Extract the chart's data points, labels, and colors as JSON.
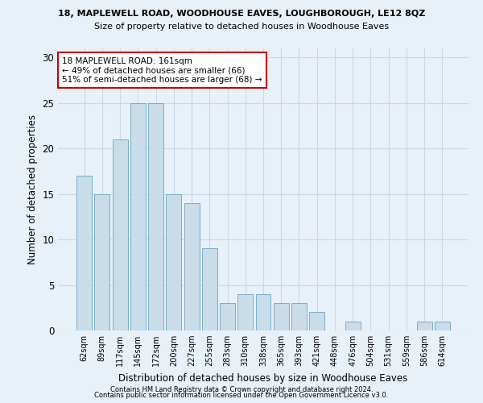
{
  "title1": "18, MAPLEWELL ROAD, WOODHOUSE EAVES, LOUGHBOROUGH, LE12 8QZ",
  "title2": "Size of property relative to detached houses in Woodhouse Eaves",
  "xlabel": "Distribution of detached houses by size in Woodhouse Eaves",
  "ylabel": "Number of detached properties",
  "categories": [
    "62sqm",
    "89sqm",
    "117sqm",
    "145sqm",
    "172sqm",
    "200sqm",
    "227sqm",
    "255sqm",
    "283sqm",
    "310sqm",
    "338sqm",
    "365sqm",
    "393sqm",
    "421sqm",
    "448sqm",
    "476sqm",
    "504sqm",
    "531sqm",
    "559sqm",
    "586sqm",
    "614sqm"
  ],
  "values": [
    17,
    15,
    21,
    25,
    25,
    15,
    14,
    9,
    3,
    4,
    4,
    3,
    3,
    2,
    0,
    1,
    0,
    0,
    0,
    1,
    1
  ],
  "bar_color": "#c9dcea",
  "bar_edgecolor": "#7aaec8",
  "highlight_index": 4,
  "highlight_color": "#c9dcea",
  "annotation_text": "18 MAPLEWELL ROAD: 161sqm\n← 49% of detached houses are smaller (66)\n51% of semi-detached houses are larger (68) →",
  "annotation_box_color": "#ffffff",
  "annotation_box_edgecolor": "#cc0000",
  "ylim": [
    0,
    31
  ],
  "yticks": [
    0,
    5,
    10,
    15,
    20,
    25,
    30
  ],
  "grid_color": "#c8d8e8",
  "background_color": "#e8f0f8",
  "footer1": "Contains HM Land Registry data © Crown copyright and database right 2024.",
  "footer2": "Contains public sector information licensed under the Open Government Licence v3.0."
}
